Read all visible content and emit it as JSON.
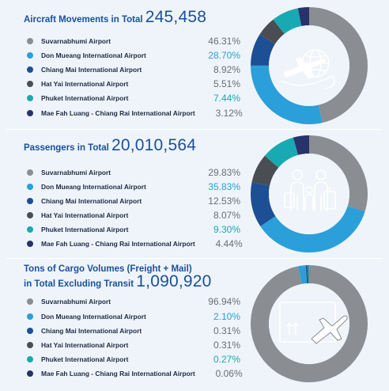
{
  "colors": {
    "suvarnabhumi": "#8a8d91",
    "don_mueang": "#2b9fd9",
    "chiang_mai": "#1d4f95",
    "hat_yai": "#4a4d52",
    "phuket": "#19a9b3",
    "mae_fah_luang": "#28336b",
    "heading": "#1b4f9c",
    "percent_default": "#6b6e72"
  },
  "sections": [
    {
      "title": "Aircraft Movements in Total",
      "title_line2": "",
      "total": "245,458",
      "icon": "airplane-globe-icon"
    },
    {
      "title": "Passengers in Total",
      "title_line2": "",
      "total": "20,010,564",
      "icon": "passengers-luggage-icon"
    },
    {
      "title": "Tons of Cargo Volumes (Freight + Mail)",
      "title_line2": "in Total Excluding Transit",
      "total": "1,090,920",
      "icon": "cargo-airplane-icon"
    }
  ],
  "chart_data": [
    {
      "type": "pie",
      "title": "Aircraft Movements in Total 245,458",
      "categories": [
        "Suvarnabhumi Airport",
        "Don Mueang International Airport",
        "Chiang Mai International Airport",
        "Hat Yai International Airport",
        "Phuket International Airport",
        "Mae Fah Luang - Chiang Rai International Airport"
      ],
      "values": [
        46.31,
        28.7,
        8.92,
        5.51,
        7.44,
        3.12
      ],
      "labels": [
        "46.31%",
        "28.70%",
        "8.92%",
        "5.51%",
        "7.44%",
        "3.12%"
      ],
      "highlight": [
        false,
        true,
        false,
        false,
        true,
        false
      ]
    },
    {
      "type": "pie",
      "title": "Passengers in Total 20,010,564",
      "categories": [
        "Suvarnabhumi Airport",
        "Don Mueang International Airport",
        "Chiang Mai International Airport",
        "Hat Yai International Airport",
        "Phuket International Airport",
        "Mae Fah Luang - Chiang Rai International Airport"
      ],
      "values": [
        29.83,
        35.83,
        12.53,
        8.07,
        9.3,
        4.44
      ],
      "labels": [
        "29.83%",
        "35.83%",
        "12.53%",
        "8.07%",
        "9.30%",
        "4.44%"
      ],
      "highlight": [
        false,
        true,
        false,
        false,
        true,
        false
      ]
    },
    {
      "type": "pie",
      "title": "Tons of Cargo Volumes (Freight + Mail) in Total Excluding Transit 1,090,920",
      "categories": [
        "Suvarnabhumi Airport",
        "Don Mueang International Airport",
        "Chiang Mai International Airport",
        "Hat Yai International Airport",
        "Phuket International Airport",
        "Mae Fah Luang - Chiang Rai International Airport"
      ],
      "values": [
        96.94,
        2.1,
        0.31,
        0.31,
        0.27,
        0.06
      ],
      "labels": [
        "96.94%",
        "2.10%",
        "0.31%",
        "0.31%",
        "0.27%",
        "0.06%"
      ],
      "highlight": [
        false,
        true,
        false,
        false,
        true,
        false
      ]
    }
  ]
}
